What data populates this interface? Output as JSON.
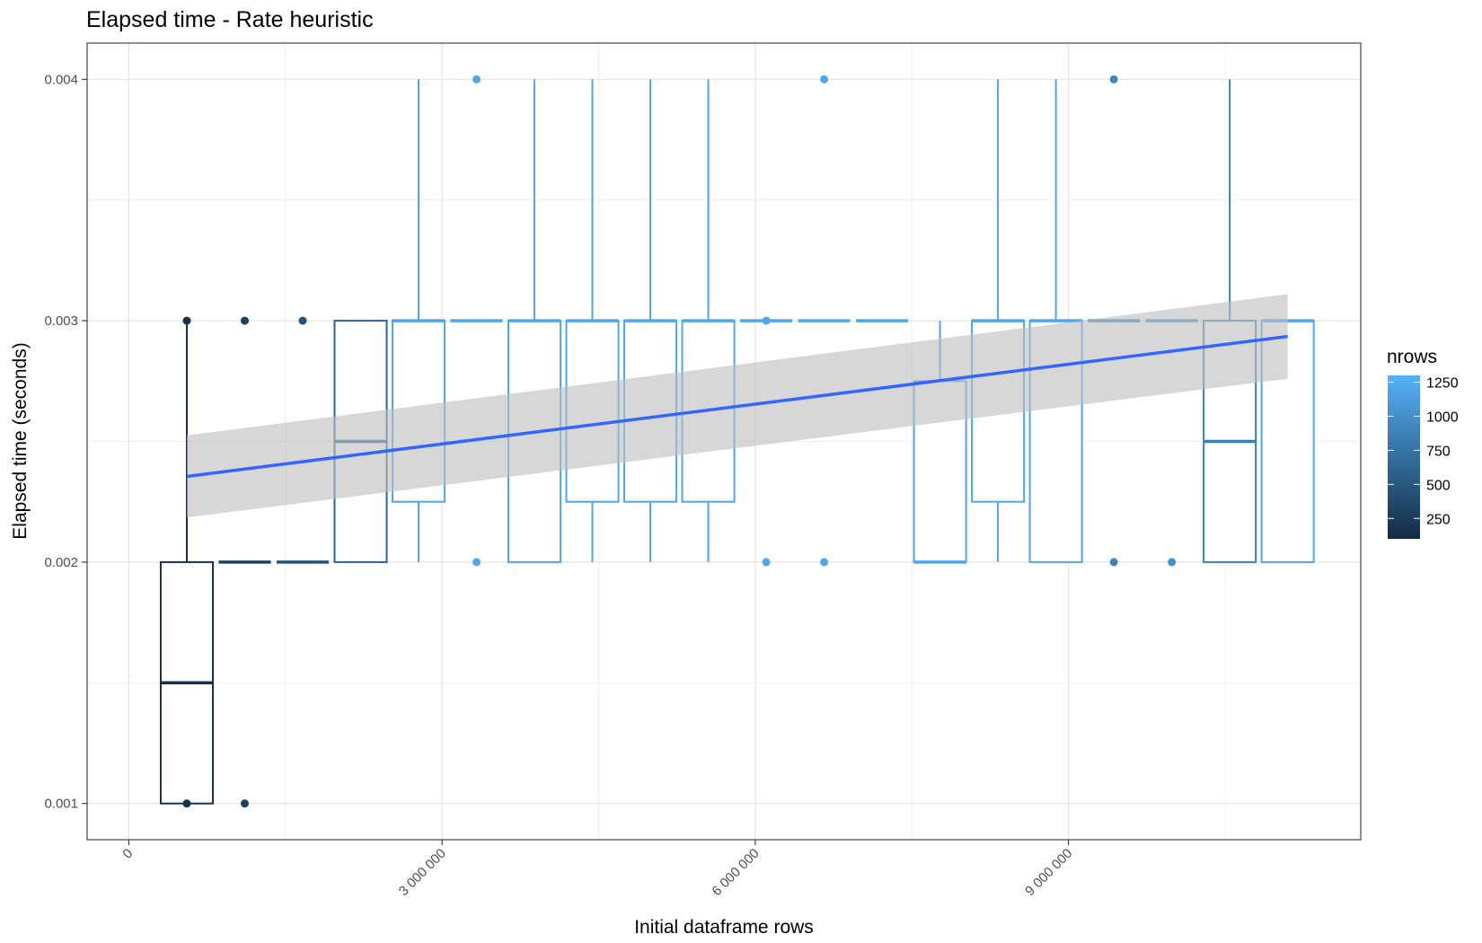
{
  "chart_data": {
    "type": "boxplot",
    "title": "Elapsed time - Rate heuristic",
    "xlabel": "Initial dataframe rows",
    "ylabel": "Elapsed time (seconds)",
    "xlim": [
      -400000,
      11800000
    ],
    "ylim": [
      0.00085,
      0.00415
    ],
    "x_ticks": [
      0,
      3000000,
      6000000,
      9000000
    ],
    "x_tick_labels": [
      "0",
      "3 000 000",
      "6 000 000",
      "9 000 000"
    ],
    "y_ticks": [
      0.001,
      0.002,
      0.003,
      0.004
    ],
    "y_tick_labels": [
      "0.001",
      "0.002",
      "0.003",
      "0.004"
    ],
    "grid": true,
    "legend": {
      "title": "nrows",
      "position": "right",
      "labels": [
        "1250",
        "1000",
        "750",
        "500",
        "250"
      ],
      "values": [
        1250,
        1000,
        750,
        500,
        250
      ],
      "range": [
        100,
        1300
      ],
      "color_low": "#132B43",
      "color_high": "#56B1F7"
    },
    "boxes": [
      {
        "x": 555000,
        "nrows": 150,
        "lower": 0.001,
        "q1": 0.001,
        "median": 0.0015,
        "q3": 0.002,
        "upper": 0.003,
        "outliers": [
          0.001,
          0.003
        ]
      },
      {
        "x": 1110000,
        "nrows": 300,
        "lower": 0.002,
        "q1": 0.002,
        "median": 0.002,
        "q3": 0.002,
        "upper": 0.002,
        "outliers": [
          0.001,
          0.003
        ]
      },
      {
        "x": 1665000,
        "nrows": 450,
        "lower": 0.002,
        "q1": 0.002,
        "median": 0.002,
        "q3": 0.002,
        "upper": 0.002,
        "outliers": [
          0.003
        ]
      },
      {
        "x": 2220000,
        "nrows": 600,
        "lower": 0.002,
        "q1": 0.002,
        "median": 0.0025,
        "q3": 0.003,
        "upper": 0.003,
        "outliers": []
      },
      {
        "x": 2775000,
        "nrows": 1200,
        "lower": 0.002,
        "q1": 0.00225,
        "median": 0.003,
        "q3": 0.003,
        "upper": 0.004,
        "outliers": []
      },
      {
        "x": 3330000,
        "nrows": 1200,
        "lower": 0.003,
        "q1": 0.003,
        "median": 0.003,
        "q3": 0.003,
        "upper": 0.003,
        "outliers": [
          0.002,
          0.004
        ]
      },
      {
        "x": 3885000,
        "nrows": 1200,
        "lower": 0.002,
        "q1": 0.002,
        "median": 0.003,
        "q3": 0.003,
        "upper": 0.004,
        "outliers": []
      },
      {
        "x": 4440000,
        "nrows": 1200,
        "lower": 0.002,
        "q1": 0.00225,
        "median": 0.003,
        "q3": 0.003,
        "upper": 0.004,
        "outliers": []
      },
      {
        "x": 4995000,
        "nrows": 1200,
        "lower": 0.002,
        "q1": 0.00225,
        "median": 0.003,
        "q3": 0.003,
        "upper": 0.004,
        "outliers": []
      },
      {
        "x": 5550000,
        "nrows": 1200,
        "lower": 0.002,
        "q1": 0.00225,
        "median": 0.003,
        "q3": 0.003,
        "upper": 0.004,
        "outliers": []
      },
      {
        "x": 6105000,
        "nrows": 1200,
        "lower": 0.003,
        "q1": 0.003,
        "median": 0.003,
        "q3": 0.003,
        "upper": 0.003,
        "outliers": [
          0.002,
          0.003
        ]
      },
      {
        "x": 6660000,
        "nrows": 1200,
        "lower": 0.003,
        "q1": 0.003,
        "median": 0.003,
        "q3": 0.003,
        "upper": 0.003,
        "outliers": [
          0.002,
          0.004
        ]
      },
      {
        "x": 7215000,
        "nrows": 1200,
        "lower": 0.003,
        "q1": 0.003,
        "median": 0.003,
        "q3": 0.003,
        "upper": 0.003,
        "outliers": []
      },
      {
        "x": 7770000,
        "nrows": 1200,
        "lower": 0.002,
        "q1": 0.002,
        "median": 0.002,
        "q3": 0.00275,
        "upper": 0.003,
        "outliers": []
      },
      {
        "x": 8325000,
        "nrows": 1200,
        "lower": 0.002,
        "q1": 0.00225,
        "median": 0.003,
        "q3": 0.003,
        "upper": 0.004,
        "outliers": []
      },
      {
        "x": 8880000,
        "nrows": 1200,
        "lower": 0.002,
        "q1": 0.002,
        "median": 0.003,
        "q3": 0.003,
        "upper": 0.004,
        "outliers": []
      },
      {
        "x": 9435000,
        "nrows": 900,
        "lower": 0.003,
        "q1": 0.003,
        "median": 0.003,
        "q3": 0.003,
        "upper": 0.003,
        "outliers": [
          0.002,
          0.004
        ]
      },
      {
        "x": 9990000,
        "nrows": 1000,
        "lower": 0.003,
        "q1": 0.003,
        "median": 0.003,
        "q3": 0.003,
        "upper": 0.003,
        "outliers": [
          0.002
        ]
      },
      {
        "x": 10545000,
        "nrows": 850,
        "lower": 0.002,
        "q1": 0.002,
        "median": 0.0025,
        "q3": 0.003,
        "upper": 0.004,
        "outliers": []
      },
      {
        "x": 11100000,
        "nrows": 1200,
        "lower": 0.002,
        "q1": 0.002,
        "median": 0.003,
        "q3": 0.003,
        "upper": 0.003,
        "outliers": []
      }
    ],
    "trend": {
      "type": "linear-fit",
      "x": [
        555000,
        11100000
      ],
      "y": [
        0.002355,
        0.002935
      ],
      "ci_lower": [
        0.002185,
        0.00276
      ],
      "ci_upper": [
        0.002525,
        0.00311
      ],
      "color": "#3366FF",
      "band_color": "#BEBEBE"
    }
  }
}
